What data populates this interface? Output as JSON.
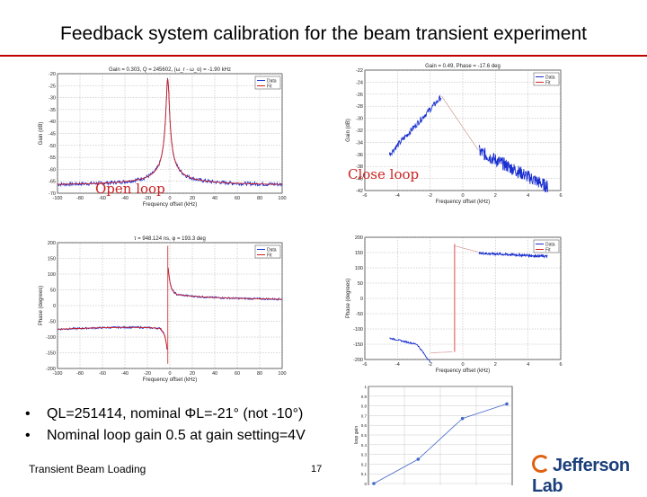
{
  "slide": {
    "title": "Feedback system calibration for the beam transient experiment",
    "open_loop_label": "Open loop",
    "close_loop_label": "Close loop",
    "bullets": [
      "QL=251414, nominal ΦL=-21° (not -10°)",
      "Nominal  loop gain 0.5 at gain setting=4V"
    ],
    "footer_text": "Transient Beam Loading",
    "page_number": "17",
    "logo_text": "Jefferson Lab"
  },
  "colors": {
    "accent_rule": "#c00000",
    "data": "#1a2fd0",
    "fit": "#d02020"
  },
  "chart_data": [
    {
      "type": "line",
      "title": "Gain = 0.303, Q = 245602, (ω_r - ω_o) = -1.90 kHz",
      "xlabel": "Frequency offset (kHz)",
      "ylabel": "Gain (dB)",
      "xlim": [
        -100,
        100
      ],
      "ylim": [
        -70,
        -20
      ],
      "xticks": [
        -100,
        -80,
        -60,
        -40,
        -20,
        0,
        20,
        40,
        60,
        80,
        100
      ],
      "yticks": [
        -20,
        -25,
        -30,
        -35,
        -40,
        -45,
        -50,
        -55,
        -60,
        -65,
        -70
      ],
      "legend": [
        "Data",
        "Fit"
      ]
    },
    {
      "type": "line",
      "title": "Gain = 0.49, Phase = -17.6 deg",
      "xlabel": "Frequency offset (kHz)",
      "ylabel": "Gain (dB)",
      "xlim": [
        -6,
        6
      ],
      "ylim": [
        -42,
        -22
      ],
      "xticks": [
        -6,
        -4,
        -2,
        0,
        2,
        4,
        6
      ],
      "yticks": [
        -22,
        -24,
        -26,
        -28,
        -30,
        -32,
        -34,
        -36,
        -38,
        -40,
        -42
      ],
      "legend": [
        "Data",
        "Fit"
      ]
    },
    {
      "type": "line",
      "title": "τ = 948.124 ns, φ = 193.3 deg",
      "xlabel": "Frequency offset (kHz)",
      "ylabel": "Phase (degrees)",
      "xlim": [
        -100,
        100
      ],
      "ylim": [
        -200,
        200
      ],
      "xticks": [
        -100,
        -80,
        -60,
        -40,
        -20,
        0,
        20,
        40,
        60,
        80,
        100
      ],
      "yticks": [
        200,
        150,
        100,
        50,
        0,
        -50,
        -100,
        -150,
        -200
      ],
      "legend": [
        "Data",
        "Fit"
      ]
    },
    {
      "type": "line",
      "title": "",
      "xlabel": "Frequency offset (kHz)",
      "ylabel": "Phase (degrees)",
      "xlim": [
        -6,
        6
      ],
      "ylim": [
        -200,
        200
      ],
      "xticks": [
        -6,
        -4,
        -2,
        0,
        2,
        4,
        6
      ],
      "yticks": [
        200,
        150,
        100,
        50,
        0,
        -50,
        -100,
        -150,
        -200
      ],
      "legend": [
        "Data",
        "Fit"
      ]
    },
    {
      "type": "line",
      "title": "",
      "xlabel": "",
      "ylabel": "loop gain",
      "ylim": [
        0,
        1
      ],
      "yticks": [
        1,
        0.9,
        0.8,
        0.7,
        0.6,
        0.5,
        0.4,
        0.3,
        0.2,
        0.1,
        0
      ],
      "series": [
        {
          "name": "",
          "x": [
            0,
            1,
            2,
            3
          ],
          "values": [
            0.0,
            0.25,
            0.67,
            0.82
          ]
        }
      ]
    }
  ]
}
